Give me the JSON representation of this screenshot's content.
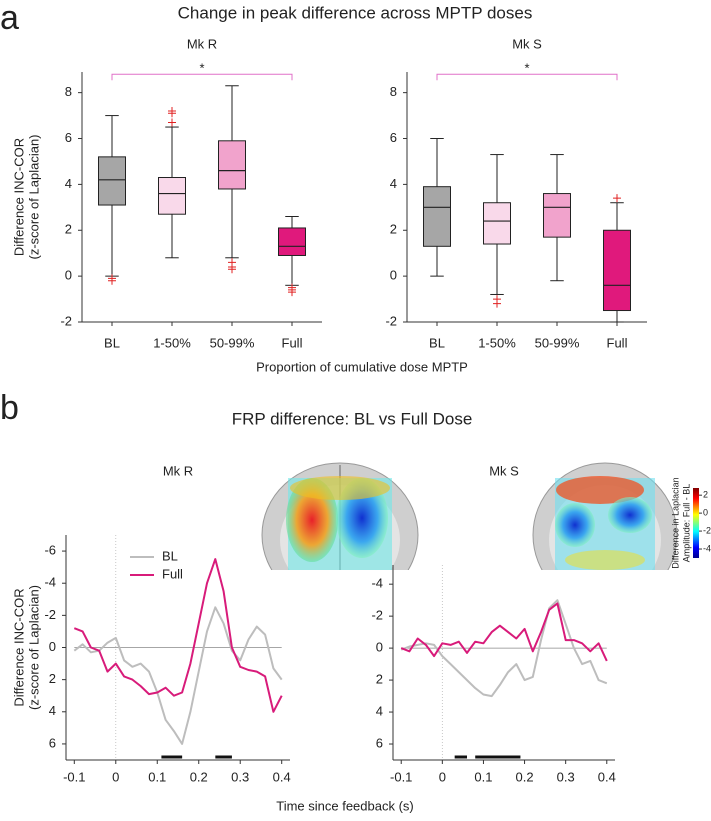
{
  "figure": {
    "a_label": "a",
    "a_title": "Change in peak difference across MPTP doses",
    "a_xlabel": "Proportion of cumulative dose MPTP",
    "b_label": "b",
    "b_title": "FRP difference: BL vs Full Dose",
    "b_xlabel": "Time since feedback (s)"
  },
  "colorbar": {
    "label": [
      "Difference in Laplacian",
      "Amplitude: Full - BL"
    ],
    "lim": [
      -5,
      2.8
    ],
    "ticks": [
      2,
      0,
      -2,
      -4
    ]
  },
  "chart_data": [
    {
      "type": "box",
      "title": "Mk R",
      "title_color": "#1a9e50",
      "ylabel": [
        "Difference INC-COR",
        "(z-score of Laplacian)"
      ],
      "categories": [
        "BL",
        "1-50%",
        "50-99%",
        "Full"
      ],
      "colors": [
        "#a6a6a6",
        "#f9d9ea",
        "#f1a3cc",
        "#e0197c"
      ],
      "boxes": [
        {
          "min": 0,
          "q1": 3.1,
          "median": 4.2,
          "q3": 5.2,
          "max": 7.0,
          "outliers": [
            -0.1,
            -0.2
          ]
        },
        {
          "min": 0.8,
          "q1": 2.7,
          "median": 3.6,
          "q3": 4.3,
          "max": 6.5,
          "outliers": [
            6.7,
            7.1,
            7.2
          ]
        },
        {
          "min": 0.8,
          "q1": 3.8,
          "median": 4.6,
          "q3": 5.9,
          "max": 8.3,
          "outliers": [
            0.6,
            0.4,
            0.3
          ]
        },
        {
          "min": -0.4,
          "q1": 0.9,
          "median": 1.3,
          "q3": 2.1,
          "max": 2.6,
          "outliers": [
            -0.5,
            -0.6,
            -0.7
          ]
        }
      ],
      "ylim": [
        -2,
        8.9
      ],
      "yticks": [
        -2,
        0,
        2,
        4,
        6,
        8
      ],
      "significance": {
        "label": "*",
        "level": 8.8,
        "color": "#e070c8"
      }
    },
    {
      "type": "box",
      "title": "Mk S",
      "title_color": "#f08a30",
      "categories": [
        "BL",
        "1-50%",
        "50-99%",
        "Full"
      ],
      "colors": [
        "#a6a6a6",
        "#f9d9ea",
        "#f1a3cc",
        "#e0197c"
      ],
      "boxes": [
        {
          "min": 0,
          "q1": 1.3,
          "median": 3.0,
          "q3": 3.9,
          "max": 6.0,
          "outliers": []
        },
        {
          "min": -0.8,
          "q1": 1.4,
          "median": 2.4,
          "q3": 3.2,
          "max": 5.3,
          "outliers": [
            -1.0,
            -1.2
          ]
        },
        {
          "min": -0.2,
          "q1": 1.7,
          "median": 3.0,
          "q3": 3.6,
          "max": 5.3,
          "outliers": []
        },
        {
          "min": -2.0,
          "q1": -1.5,
          "median": -0.4,
          "q3": 2.0,
          "max": 3.2,
          "outliers": [
            3.4
          ]
        }
      ],
      "ylim": [
        -2,
        8.9
      ],
      "yticks": [
        -2,
        0,
        2,
        4,
        6,
        8
      ],
      "significance": {
        "label": "*",
        "level": 8.8,
        "color": "#e070c8"
      }
    },
    {
      "type": "line",
      "title": "Mk R",
      "title_color": "#1a9e50",
      "ylabel": [
        "Difference INC-COR",
        "(z-score of Laplacian)"
      ],
      "x": [
        -0.1,
        -0.08,
        -0.06,
        -0.04,
        -0.02,
        0,
        0.02,
        0.04,
        0.06,
        0.08,
        0.1,
        0.12,
        0.14,
        0.16,
        0.18,
        0.2,
        0.22,
        0.24,
        0.26,
        0.28,
        0.3,
        0.32,
        0.34,
        0.36,
        0.38,
        0.4
      ],
      "series": [
        {
          "name": "BL",
          "color": "#bdbdbd",
          "values": [
            0.2,
            -0.2,
            0.3,
            0.2,
            -0.3,
            -0.6,
            0.8,
            1.2,
            1.0,
            1.5,
            2.8,
            4.5,
            5.2,
            6.0,
            4.0,
            1.5,
            -1.0,
            -2.5,
            -1.5,
            0.2,
            0.8,
            -0.5,
            -1.3,
            -0.8,
            1.3,
            2.0
          ]
        },
        {
          "name": "Full",
          "color": "#d81b7a",
          "values": [
            -1.2,
            -1.0,
            0.0,
            0.2,
            1.5,
            1.0,
            1.8,
            2.0,
            2.4,
            2.9,
            2.8,
            2.5,
            3.0,
            2.8,
            1.0,
            -1.5,
            -4.0,
            -5.5,
            -3.5,
            0.0,
            1.2,
            1.4,
            1.5,
            1.8,
            4.0,
            3.0
          ]
        }
      ],
      "xlim": [
        -0.12,
        0.42
      ],
      "xticks": [
        -0.1,
        0,
        0.1,
        0.2,
        0.3,
        0.4
      ],
      "ylim": [
        -7,
        7
      ],
      "yticks": [
        -6,
        -4,
        -2,
        0,
        2,
        4,
        6
      ],
      "y_inverted": true,
      "reference_lines": {
        "x": 0,
        "y": 0
      },
      "legend": "upper left",
      "significance_bars": [
        [
          0.11,
          0.16
        ],
        [
          0.24,
          0.28
        ]
      ]
    },
    {
      "type": "line",
      "title": "Mk S",
      "title_color": "#f08a30",
      "x": [
        -0.1,
        -0.08,
        -0.06,
        -0.04,
        -0.02,
        0,
        0.02,
        0.04,
        0.06,
        0.08,
        0.1,
        0.12,
        0.14,
        0.16,
        0.18,
        0.2,
        0.22,
        0.24,
        0.26,
        0.28,
        0.3,
        0.32,
        0.34,
        0.36,
        0.38,
        0.4
      ],
      "series": [
        {
          "color": "#bdbdbd",
          "values": [
            0.1,
            -0.1,
            -0.2,
            -0.3,
            -0.2,
            0.5,
            1.0,
            1.5,
            2.0,
            2.5,
            2.9,
            3.0,
            2.3,
            1.5,
            1.0,
            2.0,
            1.8,
            -0.5,
            -2.5,
            -3.0,
            -1.5,
            0.0,
            1.0,
            0.8,
            2.0,
            2.2
          ]
        },
        {
          "color": "#d81b7a",
          "values": [
            0.0,
            0.2,
            -0.6,
            -0.2,
            0.5,
            -0.3,
            -0.2,
            -0.4,
            0.3,
            -0.4,
            -0.3,
            -1.0,
            -1.4,
            -1.0,
            -0.6,
            -1.2,
            0.2,
            -1.0,
            -2.4,
            -2.8,
            -0.5,
            -0.5,
            -0.3,
            0.2,
            -0.3,
            0.8
          ]
        }
      ],
      "xlim": [
        -0.12,
        0.42
      ],
      "xticks": [
        -0.1,
        0,
        0.1,
        0.2,
        0.3,
        0.4
      ],
      "ylim": [
        -5.2,
        7
      ],
      "yticks": [
        -4,
        -2,
        0,
        2,
        4,
        6
      ],
      "y_inverted": true,
      "reference_lines": {
        "x": 0,
        "y": 0
      },
      "significance_bars": [
        [
          0.03,
          0.06
        ],
        [
          0.08,
          0.19
        ]
      ]
    }
  ]
}
